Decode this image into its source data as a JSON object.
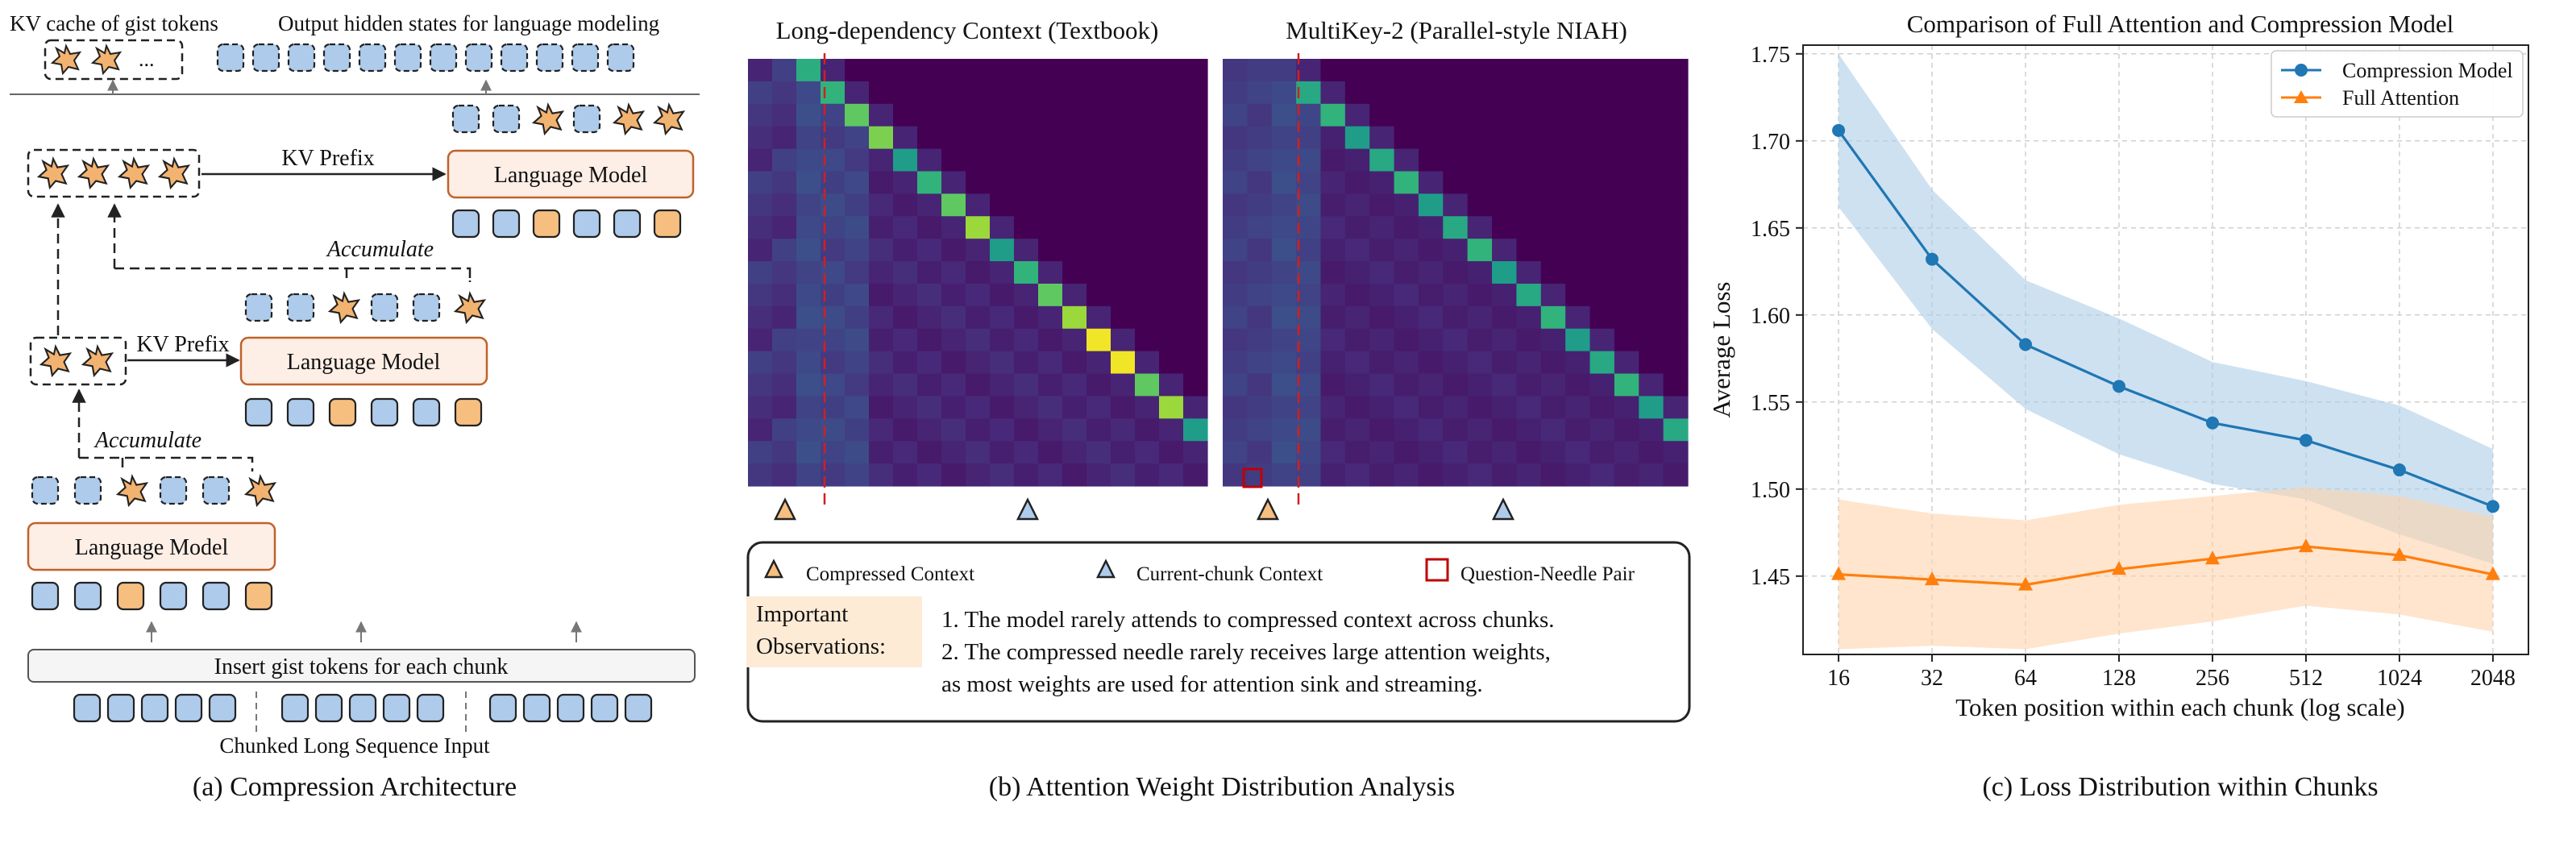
{
  "panel_a": {
    "caption": "(a) Compression Architecture",
    "kv_cache_label": "KV cache of gist tokens",
    "kv_cache_ellipsis": "...",
    "output_label": "Output hidden states for language modeling",
    "kv_prefix_label": "KV Prefix",
    "accumulate_label": "Accumulate",
    "lm_label": "Language Model",
    "insert_label": "Insert gist tokens for each chunk",
    "input_label": "Chunked Long Sequence Input",
    "colors": {
      "token_blue": "#aecbeb",
      "token_orange": "#f6bf80",
      "lm_fill": "#fdeee6",
      "lm_border": "#c0622a",
      "star": "#f3b370"
    }
  },
  "panel_b": {
    "caption": "(b) Attention Weight Distribution Analysis",
    "heatmap_left_title": "Long-dependency Context (Textbook)",
    "heatmap_right_title": "MultiKey-2 (Parallel-style NIAH)",
    "legend": {
      "compressed": "Compressed Context",
      "current": "Current-chunk Context",
      "pair": "Question-Needle Pair"
    },
    "obs_label_line1": "Important",
    "obs_label_line2": "Observations:",
    "obs_line1": "1. The model rarely attends to compressed context across chunks.",
    "obs_line2": "2. The compressed needle rarely receives large attention weights,",
    "obs_line3": "as most weights are used for attention sink and streaming.",
    "colors": {
      "viridis_low": "#440154",
      "viridis_high": "#fde725",
      "compressed_marker": "#f6bf80",
      "current_marker": "#aecbeb",
      "pair_box": "#c00000",
      "divider": "#d02020",
      "obs_bg": "#fdebd6"
    }
  },
  "chart_data": {
    "type": "line",
    "title": "Comparison of Full Attention and Compression Model",
    "xlabel": "Token position within each chunk (log scale)",
    "ylabel": "Average Loss",
    "x": [
      16,
      32,
      64,
      128,
      256,
      512,
      1024,
      2048
    ],
    "x_tick_labels": [
      "16",
      "32",
      "64",
      "128",
      "256",
      "512",
      "1024",
      "2048"
    ],
    "x_scale": "log2",
    "ylim": [
      1.405,
      1.755
    ],
    "y_ticks": [
      1.45,
      1.5,
      1.55,
      1.6,
      1.65,
      1.7,
      1.75
    ],
    "y_tick_labels": [
      "1.45",
      "1.50",
      "1.55",
      "1.60",
      "1.65",
      "1.70",
      "1.75"
    ],
    "grid": true,
    "legend_position": "top-right",
    "caption": "(c) Loss Distribution within Chunks",
    "series": [
      {
        "name": "Compression Model",
        "color": "#1f77b4",
        "band_color": "#aecde8",
        "marker": "circle",
        "values": [
          1.706,
          1.632,
          1.583,
          1.559,
          1.538,
          1.528,
          1.511,
          1.49
        ],
        "band_upper": [
          1.75,
          1.672,
          1.62,
          1.598,
          1.573,
          1.562,
          1.548,
          1.523
        ],
        "band_lower": [
          1.662,
          1.592,
          1.546,
          1.52,
          1.503,
          1.494,
          1.474,
          1.457
        ]
      },
      {
        "name": "Full Attention",
        "color": "#ff7f0e",
        "band_color": "#ffd3ad",
        "marker": "triangle",
        "values": [
          1.451,
          1.448,
          1.445,
          1.454,
          1.46,
          1.467,
          1.462,
          1.451
        ],
        "band_upper": [
          1.494,
          1.486,
          1.482,
          1.491,
          1.496,
          1.501,
          1.496,
          1.484
        ],
        "band_lower": [
          1.408,
          1.41,
          1.408,
          1.417,
          1.424,
          1.433,
          1.428,
          1.418
        ]
      }
    ]
  }
}
